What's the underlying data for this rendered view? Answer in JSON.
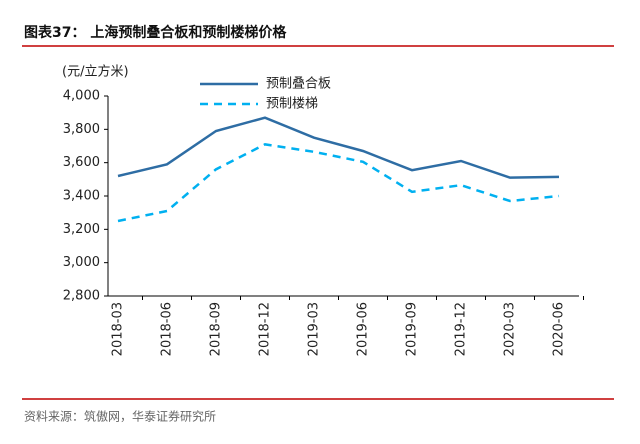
{
  "chart_data": {
    "type": "line",
    "title": "图表37：  上海预制叠合板和预制楼梯价格",
    "y_axis_label": "(元/立方米)",
    "source": "资料来源：筑傲网，华泰证券研究所",
    "categories": [
      "2018-03",
      "2018-06",
      "2018-09",
      "2018-12",
      "2019-03",
      "2019-06",
      "2019-09",
      "2019-12",
      "2020-03",
      "2020-06"
    ],
    "series": [
      {
        "name": "预制叠合板",
        "color": "#2e6da4",
        "dashed": false,
        "values": [
          3520,
          3590,
          3790,
          3870,
          3750,
          3670,
          3555,
          3610,
          3510,
          3515
        ]
      },
      {
        "name": "预制楼梯",
        "color": "#00b0f0",
        "dashed": true,
        "values": [
          3250,
          3310,
          3560,
          3710,
          3665,
          3605,
          3425,
          3465,
          3370,
          3400
        ]
      }
    ],
    "ylim": [
      2800,
      4000
    ],
    "yticks": [
      {
        "value": 2800,
        "label": "2,800"
      },
      {
        "value": 3000,
        "label": "3,000"
      },
      {
        "value": 3200,
        "label": "3,200"
      },
      {
        "value": 3400,
        "label": "3,400"
      },
      {
        "value": 3600,
        "label": "3,600"
      },
      {
        "value": 3800,
        "label": "3,800"
      },
      {
        "value": 4000,
        "label": "4,000"
      }
    ],
    "grid": false
  }
}
